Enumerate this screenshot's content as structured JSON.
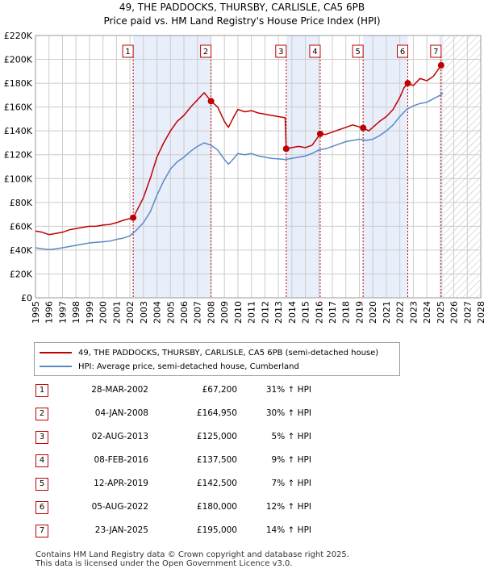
{
  "title": "49, THE PADDOCKS, THURSBY, CARLISLE, CA5 6PB",
  "subtitle": "Price paid vs. HM Land Registry's House Price Index (HPI)",
  "colors": {
    "property": "#c00000",
    "hpi": "#5a8ac6",
    "shade": "#e8eefa",
    "grid": "#cccccc"
  },
  "chart_data": {
    "type": "line",
    "x_range": [
      1995,
      2028
    ],
    "ylim": [
      0,
      220000
    ],
    "y_ticks": [
      0,
      20000,
      40000,
      60000,
      80000,
      100000,
      120000,
      140000,
      160000,
      180000,
      200000,
      220000
    ],
    "y_tick_labels": [
      "£0",
      "£20K",
      "£40K",
      "£60K",
      "£80K",
      "£100K",
      "£120K",
      "£140K",
      "£160K",
      "£180K",
      "£200K",
      "£220K"
    ],
    "x_ticks": [
      1995,
      1996,
      1997,
      1998,
      1999,
      2000,
      2001,
      2002,
      2003,
      2004,
      2005,
      2006,
      2007,
      2008,
      2009,
      2010,
      2011,
      2012,
      2013,
      2014,
      2015,
      2016,
      2017,
      2018,
      2019,
      2020,
      2021,
      2022,
      2023,
      2024,
      2025,
      2026,
      2027,
      2028
    ],
    "data_end": 2025.2,
    "series": [
      {
        "name": "49, THE PADDOCKS, THURSBY, CARLISLE, CA5 6PB (semi-detached house)",
        "points": [
          [
            1995,
            56000
          ],
          [
            1995.5,
            55000
          ],
          [
            1996,
            53000
          ],
          [
            1996.5,
            54000
          ],
          [
            1997,
            55000
          ],
          [
            1997.5,
            57000
          ],
          [
            1998,
            58000
          ],
          [
            1998.5,
            59000
          ],
          [
            1999,
            60000
          ],
          [
            1999.5,
            60000
          ],
          [
            2000,
            61000
          ],
          [
            2000.5,
            61500
          ],
          [
            2001,
            63000
          ],
          [
            2001.5,
            65000
          ],
          [
            2002.24,
            67200
          ],
          [
            2002.6,
            75000
          ],
          [
            2003,
            84000
          ],
          [
            2003.5,
            100000
          ],
          [
            2004,
            118000
          ],
          [
            2004.5,
            130000
          ],
          [
            2005,
            140000
          ],
          [
            2005.5,
            148000
          ],
          [
            2006,
            153000
          ],
          [
            2006.5,
            160000
          ],
          [
            2007,
            166000
          ],
          [
            2007.5,
            172000
          ],
          [
            2008.01,
            164950
          ],
          [
            2008.5,
            160000
          ],
          [
            2009,
            148000
          ],
          [
            2009.3,
            143000
          ],
          [
            2009.7,
            152000
          ],
          [
            2010,
            158000
          ],
          [
            2010.5,
            156000
          ],
          [
            2011,
            157000
          ],
          [
            2011.5,
            155000
          ],
          [
            2012,
            154000
          ],
          [
            2012.5,
            153000
          ],
          [
            2013,
            152000
          ],
          [
            2013.5,
            151000
          ],
          [
            2013.58,
            125000
          ],
          [
            2014,
            126000
          ],
          [
            2014.5,
            127000
          ],
          [
            2015,
            126000
          ],
          [
            2015.5,
            128000
          ],
          [
            2016.1,
            137500
          ],
          [
            2016.5,
            137000
          ],
          [
            2017,
            139000
          ],
          [
            2017.5,
            141000
          ],
          [
            2018,
            143000
          ],
          [
            2018.5,
            145000
          ],
          [
            2019.28,
            142500
          ],
          [
            2019.7,
            140000
          ],
          [
            2020,
            143000
          ],
          [
            2020.5,
            148000
          ],
          [
            2021,
            152000
          ],
          [
            2021.5,
            158000
          ],
          [
            2022,
            168000
          ],
          [
            2022.3,
            176000
          ],
          [
            2022.59,
            180000
          ],
          [
            2023,
            178000
          ],
          [
            2023.5,
            184000
          ],
          [
            2024,
            182000
          ],
          [
            2024.5,
            186000
          ],
          [
            2025.06,
            195000
          ],
          [
            2025.2,
            197000
          ]
        ]
      },
      {
        "name": "HPI: Average price, semi-detached house, Cumberland",
        "points": [
          [
            1995,
            42000
          ],
          [
            1995.5,
            41000
          ],
          [
            1996,
            40500
          ],
          [
            1996.5,
            41000
          ],
          [
            1997,
            42000
          ],
          [
            1997.5,
            43000
          ],
          [
            1998,
            44000
          ],
          [
            1998.5,
            45000
          ],
          [
            1999,
            46000
          ],
          [
            1999.5,
            46500
          ],
          [
            2000,
            47000
          ],
          [
            2000.5,
            47500
          ],
          [
            2001,
            49000
          ],
          [
            2001.5,
            50000
          ],
          [
            2002,
            52000
          ],
          [
            2002.5,
            57000
          ],
          [
            2003,
            63000
          ],
          [
            2003.5,
            72000
          ],
          [
            2004,
            86000
          ],
          [
            2004.5,
            98000
          ],
          [
            2005,
            108000
          ],
          [
            2005.5,
            114000
          ],
          [
            2006,
            118000
          ],
          [
            2006.5,
            123000
          ],
          [
            2007,
            127000
          ],
          [
            2007.5,
            130000
          ],
          [
            2008,
            128000
          ],
          [
            2008.5,
            124000
          ],
          [
            2009,
            116000
          ],
          [
            2009.3,
            112000
          ],
          [
            2009.7,
            117000
          ],
          [
            2010,
            121000
          ],
          [
            2010.5,
            120000
          ],
          [
            2011,
            121000
          ],
          [
            2011.5,
            119000
          ],
          [
            2012,
            118000
          ],
          [
            2012.5,
            117000
          ],
          [
            2013,
            116500
          ],
          [
            2013.5,
            116000
          ],
          [
            2014,
            117000
          ],
          [
            2014.5,
            118000
          ],
          [
            2015,
            119000
          ],
          [
            2015.5,
            121000
          ],
          [
            2016,
            124000
          ],
          [
            2016.5,
            125000
          ],
          [
            2017,
            127000
          ],
          [
            2017.5,
            129000
          ],
          [
            2018,
            131000
          ],
          [
            2018.5,
            132000
          ],
          [
            2019,
            133000
          ],
          [
            2019.5,
            132000
          ],
          [
            2020,
            133000
          ],
          [
            2020.5,
            136000
          ],
          [
            2021,
            140000
          ],
          [
            2021.5,
            145000
          ],
          [
            2022,
            152000
          ],
          [
            2022.5,
            158000
          ],
          [
            2023,
            161000
          ],
          [
            2023.5,
            163000
          ],
          [
            2024,
            164000
          ],
          [
            2024.5,
            167000
          ],
          [
            2025,
            170000
          ],
          [
            2025.2,
            172000
          ]
        ]
      }
    ],
    "sales": [
      {
        "n": "1",
        "x": 2002.24,
        "y": 67200
      },
      {
        "n": "2",
        "x": 2008.01,
        "y": 164950
      },
      {
        "n": "3",
        "x": 2013.58,
        "y": 125000
      },
      {
        "n": "4",
        "x": 2016.1,
        "y": 137500
      },
      {
        "n": "5",
        "x": 2019.28,
        "y": 142500
      },
      {
        "n": "6",
        "x": 2022.59,
        "y": 180000
      },
      {
        "n": "7",
        "x": 2025.06,
        "y": 195000
      }
    ]
  },
  "legend": {
    "property": "49, THE PADDOCKS, THURSBY, CARLISLE, CA5 6PB (semi-detached house)",
    "hpi": "HPI: Average price, semi-detached house, Cumberland"
  },
  "transactions": [
    {
      "n": "1",
      "date": "28-MAR-2002",
      "price": "£67,200",
      "hpi": "31% ↑ HPI"
    },
    {
      "n": "2",
      "date": "04-JAN-2008",
      "price": "£164,950",
      "hpi": "30% ↑ HPI"
    },
    {
      "n": "3",
      "date": "02-AUG-2013",
      "price": "£125,000",
      "hpi": "5% ↑ HPI"
    },
    {
      "n": "4",
      "date": "08-FEB-2016",
      "price": "£137,500",
      "hpi": "9% ↑ HPI"
    },
    {
      "n": "5",
      "date": "12-APR-2019",
      "price": "£142,500",
      "hpi": "7% ↑ HPI"
    },
    {
      "n": "6",
      "date": "05-AUG-2022",
      "price": "£180,000",
      "hpi": "12% ↑ HPI"
    },
    {
      "n": "7",
      "date": "23-JAN-2025",
      "price": "£195,000",
      "hpi": "14% ↑ HPI"
    }
  ],
  "footer": {
    "line1": "Contains HM Land Registry data © Crown copyright and database right 2025.",
    "line2": "This data is licensed under the Open Government Licence v3.0."
  }
}
